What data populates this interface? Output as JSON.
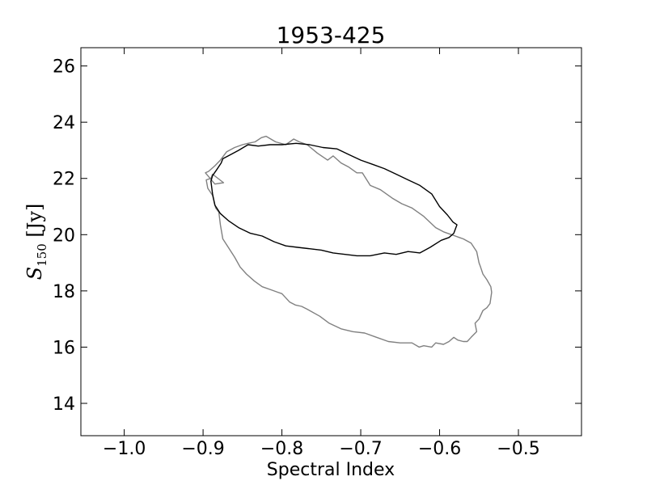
{
  "chart_data": {
    "type": "line",
    "title": "1953-425",
    "xlabel": "Spectral Index",
    "ylabel": {
      "symbol": "S",
      "subscript": "150",
      "unit": " [Jy]"
    },
    "xlim": [
      -1.055,
      -0.42
    ],
    "ylim": [
      12.85,
      26.65
    ],
    "xticks": [
      -1.0,
      -0.9,
      -0.8,
      -0.7,
      -0.6,
      -0.5
    ],
    "xtick_labels": [
      "−1.0",
      "−0.9",
      "−0.8",
      "−0.7",
      "−0.6",
      "−0.5"
    ],
    "yticks": [
      14,
      16,
      18,
      20,
      22,
      24,
      26
    ],
    "ytick_labels": [
      "14",
      "16",
      "18",
      "20",
      "22",
      "24",
      "26"
    ],
    "grid": false,
    "series": [
      {
        "color": "#808080",
        "x": [
          -0.82,
          -0.808,
          -0.795,
          -0.785,
          -0.778,
          -0.768,
          -0.755,
          -0.742,
          -0.735,
          -0.725,
          -0.715,
          -0.705,
          -0.698,
          -0.688,
          -0.675,
          -0.66,
          -0.648,
          -0.635,
          -0.62,
          -0.605,
          -0.595,
          -0.585,
          -0.58,
          -0.575,
          -0.57,
          -0.56,
          -0.553,
          -0.55,
          -0.548,
          -0.545,
          -0.54,
          -0.535,
          -0.534,
          -0.536,
          -0.54,
          -0.545,
          -0.55,
          -0.555,
          -0.553,
          -0.56,
          -0.565,
          -0.57,
          -0.577,
          -0.582,
          -0.588,
          -0.595,
          -0.605,
          -0.61,
          -0.62,
          -0.626,
          -0.635,
          -0.65,
          -0.665,
          -0.68,
          -0.695,
          -0.71,
          -0.725,
          -0.74,
          -0.752,
          -0.768,
          -0.775,
          -0.783,
          -0.79,
          -0.8,
          -0.805,
          -0.815,
          -0.825,
          -0.835,
          -0.845,
          -0.853,
          -0.86,
          -0.868,
          -0.875,
          -0.878,
          -0.88,
          -0.884,
          -0.888,
          -0.894,
          -0.896,
          -0.89,
          -0.888,
          -0.874,
          -0.885,
          -0.897,
          -0.893,
          -0.885,
          -0.878,
          -0.87,
          -0.86,
          -0.85,
          -0.843,
          -0.834,
          -0.826,
          -0.82
        ],
        "y": [
          23.5,
          23.3,
          23.2,
          23.4,
          23.3,
          23.2,
          22.9,
          22.65,
          22.8,
          22.55,
          22.4,
          22.2,
          22.2,
          21.75,
          21.6,
          21.3,
          21.1,
          20.95,
          20.65,
          20.25,
          20.1,
          20.0,
          19.95,
          19.9,
          19.85,
          19.7,
          19.4,
          19.0,
          18.85,
          18.6,
          18.4,
          18.15,
          17.95,
          17.55,
          17.4,
          17.3,
          17.0,
          16.85,
          16.55,
          16.35,
          16.2,
          16.2,
          16.25,
          16.35,
          16.2,
          16.1,
          16.15,
          16.0,
          16.05,
          16.0,
          16.15,
          16.15,
          16.2,
          16.35,
          16.5,
          16.55,
          16.65,
          16.85,
          17.1,
          17.35,
          17.45,
          17.5,
          17.6,
          17.9,
          17.95,
          18.05,
          18.15,
          18.35,
          18.6,
          18.85,
          19.2,
          19.55,
          19.85,
          20.35,
          20.8,
          20.95,
          21.4,
          21.65,
          21.95,
          22.0,
          22.15,
          21.85,
          21.8,
          22.2,
          22.25,
          22.45,
          22.65,
          22.95,
          23.1,
          23.2,
          23.25,
          23.3,
          23.45,
          23.5
        ]
      },
      {
        "color": "#000000",
        "x": [
          -0.875,
          -0.865,
          -0.855,
          -0.843,
          -0.83,
          -0.815,
          -0.8,
          -0.782,
          -0.765,
          -0.748,
          -0.73,
          -0.715,
          -0.7,
          -0.685,
          -0.67,
          -0.655,
          -0.64,
          -0.625,
          -0.61,
          -0.6,
          -0.59,
          -0.583,
          -0.578,
          -0.582,
          -0.588,
          -0.598,
          -0.612,
          -0.625,
          -0.64,
          -0.655,
          -0.67,
          -0.688,
          -0.705,
          -0.72,
          -0.735,
          -0.75,
          -0.765,
          -0.78,
          -0.795,
          -0.81,
          -0.825,
          -0.84,
          -0.855,
          -0.868,
          -0.878,
          -0.885,
          -0.888,
          -0.89,
          -0.888,
          -0.883,
          -0.877,
          -0.875
        ],
        "y": [
          22.7,
          22.85,
          23.0,
          23.2,
          23.15,
          23.2,
          23.2,
          23.25,
          23.2,
          23.1,
          23.05,
          22.85,
          22.65,
          22.5,
          22.35,
          22.15,
          21.95,
          21.75,
          21.45,
          21.0,
          20.7,
          20.45,
          20.35,
          20.05,
          19.9,
          19.8,
          19.55,
          19.35,
          19.4,
          19.3,
          19.35,
          19.25,
          19.25,
          19.3,
          19.35,
          19.45,
          19.5,
          19.55,
          19.6,
          19.75,
          19.95,
          20.05,
          20.25,
          20.5,
          20.75,
          21.05,
          21.45,
          21.9,
          22.1,
          22.3,
          22.55,
          22.7
        ]
      }
    ]
  }
}
